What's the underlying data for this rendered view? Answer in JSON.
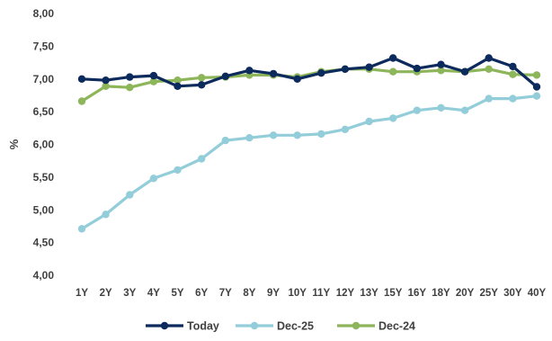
{
  "chart_data": {
    "type": "line",
    "categories": [
      "1Y",
      "2Y",
      "3Y",
      "4Y",
      "5Y",
      "6Y",
      "7Y",
      "8Y",
      "9Y",
      "10Y",
      "11Y",
      "12Y",
      "13Y",
      "15Y",
      "16Y",
      "18Y",
      "20Y",
      "25Y",
      "30Y",
      "40Y"
    ],
    "ylabel": "%",
    "ylim": [
      4.0,
      8.0
    ],
    "yticks": [
      "4,00",
      "4,50",
      "5,00",
      "5,50",
      "6,00",
      "6,50",
      "7,00",
      "7,50",
      "8,00"
    ],
    "grid": false,
    "legend_position": "bottom",
    "series": [
      {
        "name": "Today",
        "color": "#0d2a5c",
        "values": [
          7.0,
          6.98,
          7.03,
          7.05,
          6.89,
          6.91,
          7.04,
          7.13,
          7.08,
          7.0,
          7.09,
          7.15,
          7.18,
          7.32,
          7.16,
          7.22,
          7.11,
          7.32,
          7.19,
          6.88
        ]
      },
      {
        "name": "Dec-25",
        "color": "#93cdd9",
        "values": [
          4.71,
          4.93,
          5.23,
          5.48,
          5.61,
          5.78,
          6.06,
          6.1,
          6.14,
          6.14,
          6.16,
          6.23,
          6.35,
          6.4,
          6.52,
          6.56,
          6.52,
          6.7,
          6.7,
          6.74
        ]
      },
      {
        "name": "Dec-24",
        "color": "#8db55a",
        "values": [
          6.66,
          6.89,
          6.87,
          6.96,
          6.98,
          7.02,
          7.03,
          7.06,
          7.06,
          7.03,
          7.11,
          7.15,
          7.15,
          7.11,
          7.11,
          7.13,
          7.11,
          7.15,
          7.07,
          7.06
        ]
      }
    ]
  }
}
